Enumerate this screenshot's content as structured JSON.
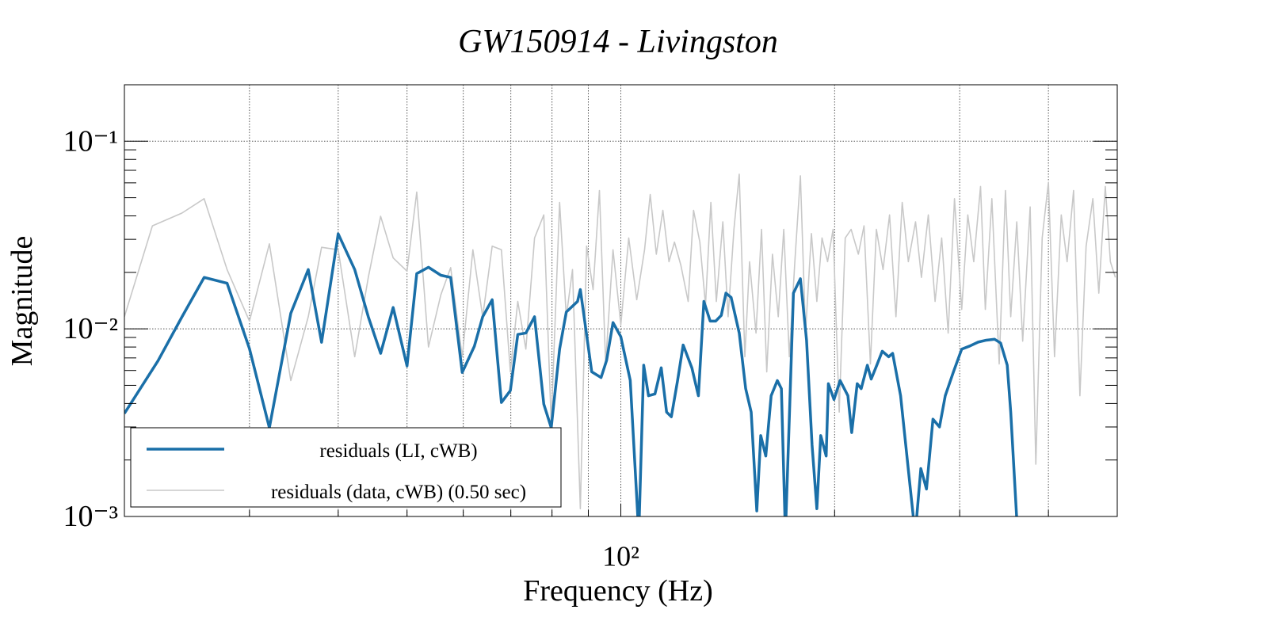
{
  "chart_data": {
    "type": "line",
    "title": "GW150914 - Livingston",
    "x_label": "Frequency (Hz)",
    "y_label": "Magnitude",
    "x_log": true,
    "y_log": true,
    "xlim": [
      20,
      500
    ],
    "ylim": [
      0.001,
      0.2
    ],
    "xticks": [
      {
        "value": 100,
        "label": "10²"
      }
    ],
    "x_minor_ticks": [
      30,
      40,
      50,
      60,
      70,
      80,
      90,
      200,
      300,
      400
    ],
    "yticks": [
      {
        "value": 0.001,
        "label": "10⁻³"
      },
      {
        "value": 0.01,
        "label": "10⁻²"
      },
      {
        "value": 0.1,
        "label": "10⁻¹"
      }
    ],
    "y_minor_ticks": [
      0.002,
      0.003,
      0.004,
      0.005,
      0.006,
      0.007,
      0.008,
      0.009,
      0.02,
      0.03,
      0.04,
      0.05,
      0.06,
      0.07,
      0.08,
      0.09,
      0.2
    ],
    "grid": true,
    "legend_position": "lower left",
    "series": [
      {
        "name": "residuals (data, cWB) (0.50 sec)",
        "color": "#c8c8c8",
        "x": [
          20,
          21.9,
          24.1,
          25.9,
          27.9,
          30,
          32,
          34.3,
          36.3,
          37.9,
          40,
          42.2,
          44.1,
          45.9,
          47.8,
          50,
          51.6,
          53.6,
          55.8,
          57.6,
          59.8,
          61.9,
          63.9,
          65.9,
          67.9,
          69.9,
          71.6,
          73.5,
          75.6,
          77.9,
          79.8,
          82,
          83.8,
          85.5,
          87.7,
          89.5,
          91.4,
          93.3,
          95.2,
          97.5,
          100,
          102.6,
          105.3,
          108,
          110,
          112.2,
          114.6,
          116.9,
          119,
          121.5,
          124.4,
          126.6,
          129.2,
          131.6,
          133.9,
          136.3,
          139.2,
          141.6,
          144.3,
          146.8,
          149.5,
          151.8,
          155,
          157.8,
          160.5,
          163.5,
          166.6,
          169.6,
          172.7,
          175.8,
          179,
          182,
          185.5,
          188.8,
          192,
          195.5,
          199,
          203,
          207,
          211,
          216,
          220,
          224.6,
          229,
          234,
          239,
          244,
          249,
          254,
          260,
          265,
          271,
          277,
          283,
          289,
          295,
          302,
          308,
          314,
          321,
          326,
          333,
          341,
          348,
          354,
          361,
          368,
          377,
          384,
          392,
          400,
          408,
          417,
          425,
          434,
          443,
          452,
          462,
          471,
          481,
          489,
          497
        ],
        "values": [
          0.0116,
          0.0354,
          0.0414,
          0.0494,
          0.0207,
          0.011,
          0.0284,
          0.0053,
          0.0116,
          0.0272,
          0.0264,
          0.0071,
          0.0188,
          0.0398,
          0.0239,
          0.0203,
          0.0536,
          0.008,
          0.0152,
          0.0212,
          0.0071,
          0.0264,
          0.0116,
          0.0276,
          0.0264,
          0.0059,
          0.014,
          0.0078,
          0.0305,
          0.0405,
          0.0031,
          0.0472,
          0.0116,
          0.0207,
          0.0011,
          0.0276,
          0.0162,
          0.0546,
          0.0065,
          0.0264,
          0.0105,
          0.0305,
          0.0143,
          0.0264,
          0.052,
          0.025,
          0.0428,
          0.0228,
          0.029,
          0.0218,
          0.014,
          0.0428,
          0.029,
          0.0134,
          0.0472,
          0.014,
          0.0372,
          0.0116,
          0.0339,
          0.0667,
          0.0071,
          0.0228,
          0.0095,
          0.0339,
          0.0059,
          0.025,
          0.0116,
          0.0339,
          0.0071,
          0.0228,
          0.0654,
          0.0095,
          0.0322,
          0.014,
          0.0305,
          0.0228,
          0.0339,
          0.0036,
          0.0305,
          0.0339,
          0.025,
          0.0354,
          0.0065,
          0.0339,
          0.0207,
          0.0405,
          0.0116,
          0.0472,
          0.0228,
          0.0372,
          0.0188,
          0.0405,
          0.014,
          0.0305,
          0.0095,
          0.0494,
          0.0127,
          0.0405,
          0.0228,
          0.0574,
          0.0127,
          0.0494,
          0.0065,
          0.0546,
          0.0116,
          0.0372,
          0.0086,
          0.0447,
          0.0019,
          0.0305,
          0.0604,
          0.0071,
          0.0405,
          0.0228,
          0.0546,
          0.0044,
          0.0276,
          0.0494,
          0.0155,
          0.0574,
          0.0228,
          0.0188
        ]
      },
      {
        "name": "residuals (LI, cWB)",
        "color": "#1a6fa8",
        "x": [
          20,
          22.3,
          24.1,
          25.9,
          27.9,
          30,
          32,
          34.3,
          36.3,
          37.9,
          40,
          42.2,
          44.1,
          45.9,
          47.8,
          50,
          51.6,
          53.6,
          55.8,
          57.6,
          59.8,
          62.2,
          63.9,
          65.9,
          67.9,
          69.9,
          71.6,
          73.5,
          75.6,
          77.9,
          79.8,
          82,
          83.8,
          86.9,
          87.7,
          91,
          93.8,
          95.5,
          97.5,
          100,
          103.1,
          106,
          107.7,
          109.4,
          111.7,
          114,
          116,
          117.8,
          120.2,
          122.4,
          125.9,
          128.6,
          130.9,
          133.6,
          136,
          138.5,
          140.6,
          143,
          146.8,
          149.9,
          152.6,
          155.4,
          157.4,
          160,
          162.8,
          166.1,
          168.3,
          170.5,
          172.8,
          175,
          179,
          182.6,
          185.9,
          188.8,
          191.2,
          194.6,
          196,
          199.6,
          203.6,
          208.8,
          211.4,
          215.2,
          218,
          222.4,
          225.2,
          229.3,
          233.4,
          238.3,
          241.4,
          247.7,
          254.3,
          259.7,
          264.5,
          269.4,
          275.1,
          281,
          286.3,
          294,
          302,
          310,
          318.5,
          327,
          336,
          342.6,
          350,
          354,
          362
        ],
        "values": [
          0.00354,
          0.00675,
          0.01157,
          0.0188,
          0.0175,
          0.00784,
          0.00297,
          0.0121,
          0.0207,
          0.00848,
          0.0321,
          0.0207,
          0.0116,
          0.0074,
          0.013,
          0.00634,
          0.0197,
          0.0213,
          0.0193,
          0.0188,
          0.00586,
          0.00808,
          0.0116,
          0.0143,
          0.00405,
          0.00469,
          0.00934,
          0.0095,
          0.0116,
          0.00397,
          0.00297,
          0.0078,
          0.0123,
          0.014,
          0.0162,
          0.0059,
          0.0055,
          0.0068,
          0.0108,
          0.00908,
          0.00532,
          0.0008,
          0.0064,
          0.0044,
          0.0045,
          0.0062,
          0.0036,
          0.0034,
          0.0053,
          0.0082,
          0.0062,
          0.0044,
          0.014,
          0.011,
          0.011,
          0.0118,
          0.0155,
          0.0147,
          0.0095,
          0.0048,
          0.0036,
          0.00107,
          0.0027,
          0.0021,
          0.0044,
          0.0053,
          0.0048,
          0.0008,
          0.0036,
          0.0155,
          0.0185,
          0.0087,
          0.0024,
          0.0011,
          0.0027,
          0.0021,
          0.0051,
          0.0042,
          0.0053,
          0.0044,
          0.0028,
          0.0051,
          0.0048,
          0.0064,
          0.0054,
          0.0064,
          0.0076,
          0.0071,
          0.0074,
          0.0044,
          0.0017,
          0.0008,
          0.0018,
          0.0014,
          0.0033,
          0.003,
          0.0044,
          0.0059,
          0.0078,
          0.0081,
          0.0085,
          0.0087,
          0.0088,
          0.0084,
          0.0064,
          0.0036,
          0.0008
        ]
      }
    ]
  }
}
